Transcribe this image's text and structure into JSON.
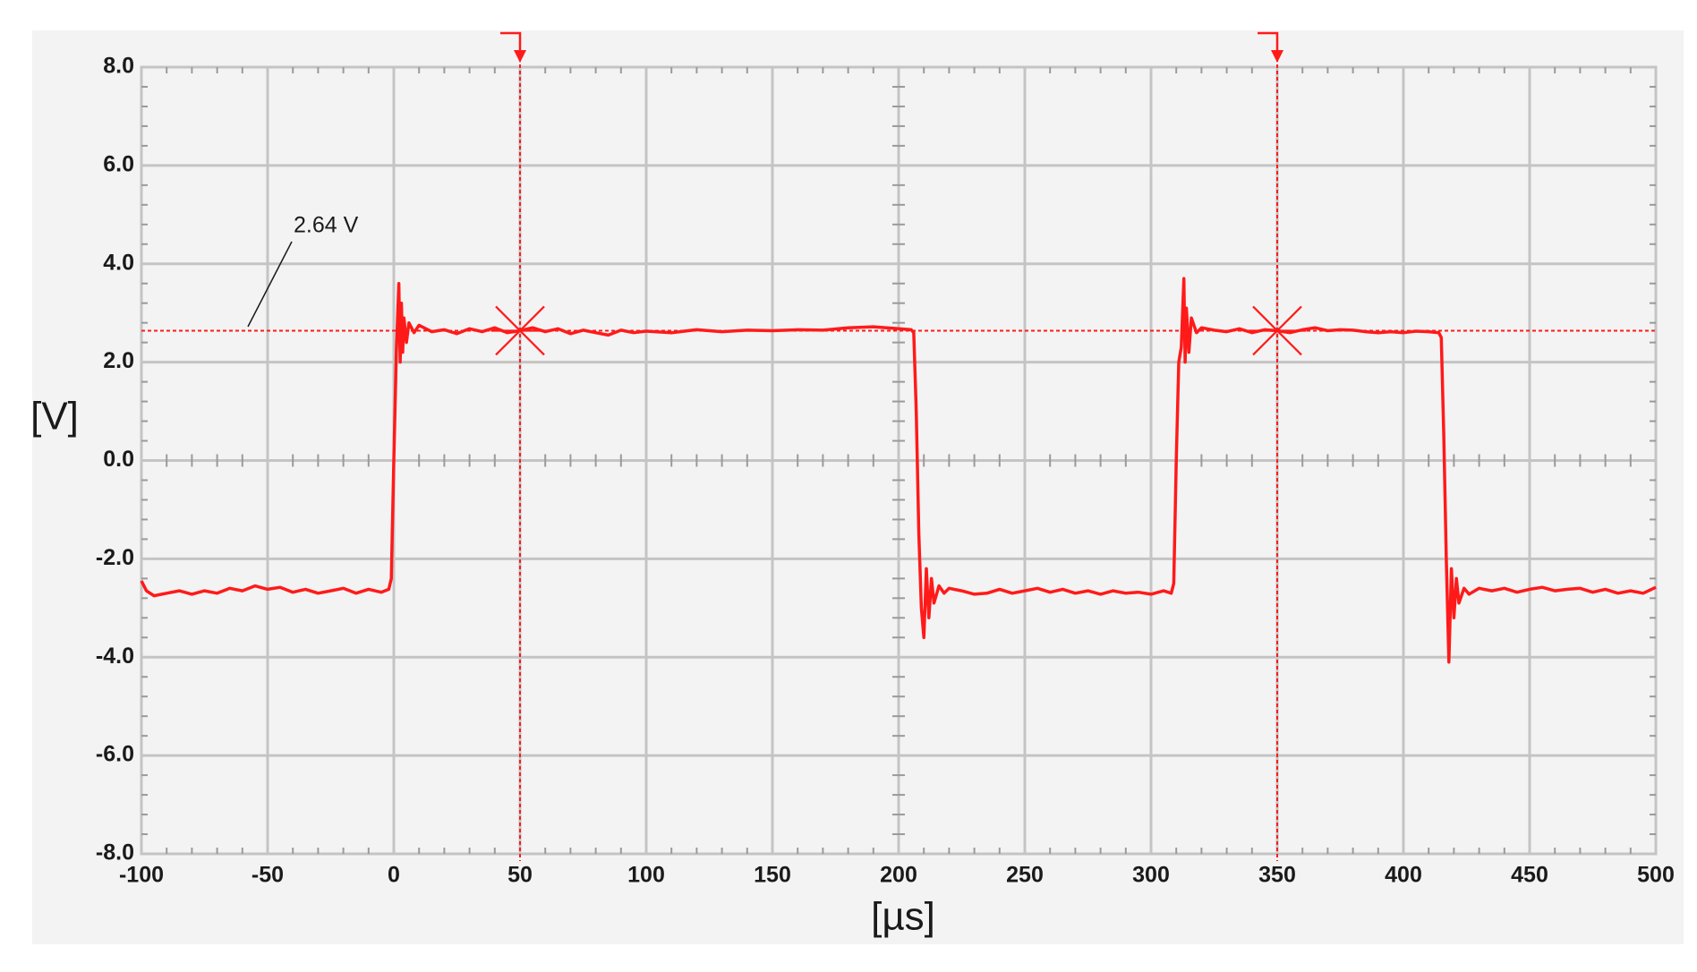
{
  "chart_data": {
    "type": "line",
    "xlabel": "[µs]",
    "ylabel": "[V]",
    "xlim": [
      -100,
      500
    ],
    "ylim": [
      -8,
      8
    ],
    "xticks": [
      -100,
      -50,
      0,
      50,
      100,
      150,
      200,
      250,
      300,
      350,
      400,
      450,
      500
    ],
    "yticks": [
      {
        "value": -8,
        "label": "-8.0"
      },
      {
        "value": -6,
        "label": "-6.0"
      },
      {
        "value": -4,
        "label": "-4.0"
      },
      {
        "value": -2,
        "label": "-2.0"
      },
      {
        "value": 0,
        "label": "0.0"
      },
      {
        "value": 2,
        "label": "2.0"
      },
      {
        "value": 4,
        "label": "4.0"
      },
      {
        "value": 6,
        "label": "6.0"
      },
      {
        "value": 8,
        "label": "8.0"
      }
    ],
    "grid": true,
    "center_axes": [
      200,
      0
    ],
    "cursors": {
      "x": [
        50,
        350
      ],
      "y": 2.64,
      "label": "2.64 V",
      "color": "#ff1a1a"
    },
    "series": [
      {
        "color": "#ff1a1a",
        "x": [
          -100,
          -98,
          -95,
          -90,
          -85,
          -80,
          -75,
          -70,
          -65,
          -60,
          -55,
          -50,
          -45,
          -40,
          -35,
          -30,
          -25,
          -20,
          -15,
          -10,
          -5,
          -2,
          -1,
          0,
          1,
          2,
          2.5,
          3,
          3.5,
          4,
          5,
          6,
          8,
          10,
          15,
          20,
          25,
          30,
          35,
          40,
          45,
          50,
          55,
          60,
          65,
          70,
          75,
          80,
          85,
          90,
          95,
          100,
          110,
          120,
          130,
          140,
          150,
          160,
          170,
          180,
          190,
          200,
          205,
          206,
          207,
          208,
          209,
          210,
          211,
          212,
          213,
          214,
          216,
          218,
          220,
          225,
          230,
          235,
          240,
          245,
          250,
          255,
          260,
          265,
          270,
          275,
          280,
          285,
          290,
          295,
          300,
          305,
          308,
          309,
          310,
          311,
          312,
          313,
          313.5,
          314,
          315,
          316,
          318,
          320,
          325,
          330,
          335,
          340,
          345,
          350,
          355,
          360,
          365,
          370,
          375,
          380,
          385,
          390,
          395,
          400,
          405,
          410,
          414,
          415,
          416,
          417,
          418,
          419,
          420,
          421,
          422,
          424,
          426,
          430,
          435,
          440,
          445,
          450,
          455,
          460,
          465,
          470,
          475,
          480,
          485,
          490,
          495,
          500
        ],
        "values": [
          -2.45,
          -2.65,
          -2.75,
          -2.7,
          -2.65,
          -2.72,
          -2.65,
          -2.7,
          -2.6,
          -2.65,
          -2.55,
          -2.62,
          -2.58,
          -2.68,
          -2.62,
          -2.7,
          -2.65,
          -2.6,
          -2.7,
          -2.62,
          -2.68,
          -2.62,
          -2.4,
          0.0,
          2.2,
          3.6,
          2.0,
          3.2,
          2.2,
          2.9,
          2.4,
          2.8,
          2.6,
          2.75,
          2.62,
          2.66,
          2.58,
          2.68,
          2.62,
          2.7,
          2.6,
          2.64,
          2.7,
          2.62,
          2.68,
          2.58,
          2.65,
          2.6,
          2.55,
          2.65,
          2.6,
          2.63,
          2.6,
          2.66,
          2.62,
          2.65,
          2.64,
          2.66,
          2.65,
          2.7,
          2.72,
          2.68,
          2.66,
          2.6,
          1.0,
          -1.5,
          -3.0,
          -3.6,
          -2.2,
          -3.2,
          -2.4,
          -2.9,
          -2.55,
          -2.7,
          -2.6,
          -2.65,
          -2.72,
          -2.7,
          -2.62,
          -2.7,
          -2.65,
          -2.6,
          -2.68,
          -2.62,
          -2.7,
          -2.65,
          -2.72,
          -2.65,
          -2.7,
          -2.68,
          -2.72,
          -2.65,
          -2.7,
          -2.5,
          0.0,
          2.0,
          2.3,
          3.7,
          2.0,
          3.1,
          2.2,
          2.9,
          2.6,
          2.7,
          2.65,
          2.62,
          2.68,
          2.6,
          2.66,
          2.64,
          2.6,
          2.66,
          2.7,
          2.64,
          2.66,
          2.65,
          2.62,
          2.6,
          2.62,
          2.6,
          2.63,
          2.62,
          2.6,
          2.5,
          0.5,
          -2.0,
          -4.1,
          -2.2,
          -3.2,
          -2.4,
          -2.9,
          -2.6,
          -2.72,
          -2.6,
          -2.65,
          -2.6,
          -2.68,
          -2.62,
          -2.58,
          -2.65,
          -2.62,
          -2.6,
          -2.68,
          -2.62,
          -2.7,
          -2.65,
          -2.7,
          -2.58
        ]
      }
    ]
  }
}
